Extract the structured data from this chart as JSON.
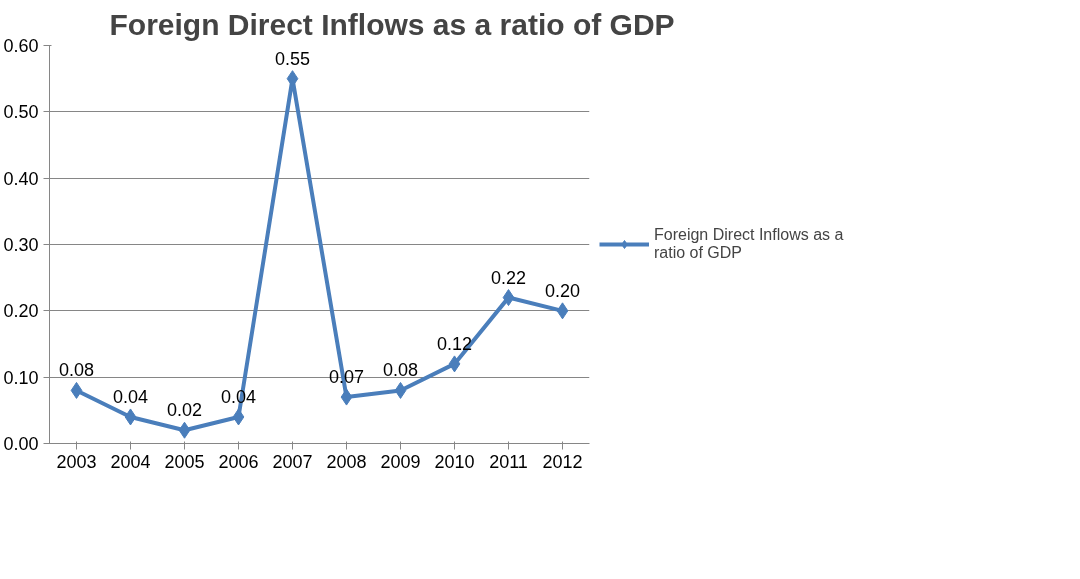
{
  "chart_data": {
    "type": "line",
    "title": "Foreign Direct Inflows as a ratio of GDP",
    "categories": [
      "2003",
      "2004",
      "2005",
      "2006",
      "2007",
      "2008",
      "2009",
      "2010",
      "2011",
      "2012"
    ],
    "series": [
      {
        "name": "Foreign Direct Inflows as a ratio of GDP",
        "color": "#4a7ebb",
        "values": [
          0.08,
          0.04,
          0.02,
          0.04,
          0.55,
          0.07,
          0.08,
          0.12,
          0.22,
          0.2
        ]
      }
    ],
    "ylim": [
      0,
      0.6
    ],
    "yticks": [
      {
        "value": 0,
        "label": "0.00"
      },
      {
        "value": 0.1,
        "label": "0.10"
      },
      {
        "value": 0.2,
        "label": "0.20"
      },
      {
        "value": 0.3,
        "label": "0.30"
      },
      {
        "value": 0.4,
        "label": "0.40"
      },
      {
        "value": 0.5,
        "label": "0.50"
      },
      {
        "value": 0.6,
        "label": "0.60"
      }
    ],
    "value_labels": [
      "0.08",
      "0.04",
      "0.02",
      "0.04",
      "0.55",
      "0.07",
      "0.08",
      "0.12",
      "0.22",
      "0.20"
    ],
    "grid": "y",
    "legend": "right",
    "marker": "diamond",
    "line_style": "solid"
  }
}
